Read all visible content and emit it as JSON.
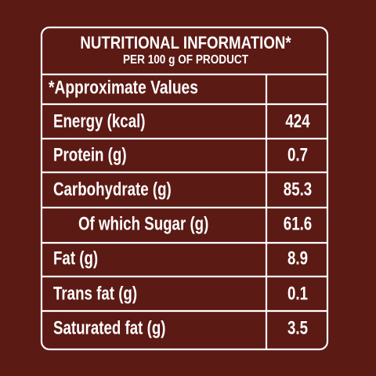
{
  "header": {
    "title": "NUTRITIONAL INFORMATION*",
    "subtitle": "PER 100 g OF PRODUCT"
  },
  "table": {
    "note": "*Approximate Values",
    "rows": [
      {
        "label": "Energy (kcal)",
        "value": 424
      },
      {
        "label": "Protein (g)",
        "value": 0.7
      },
      {
        "label": "Carbohydrate (g)",
        "value": 85.3
      },
      {
        "label": "Of which Sugar (g)",
        "value": 61.6
      },
      {
        "label": "Fat (g)",
        "value": 8.9
      },
      {
        "label": "Trans fat (g)",
        "value": 0.1
      },
      {
        "label": "Saturated fat (g)",
        "value": 3.5
      }
    ]
  }
}
